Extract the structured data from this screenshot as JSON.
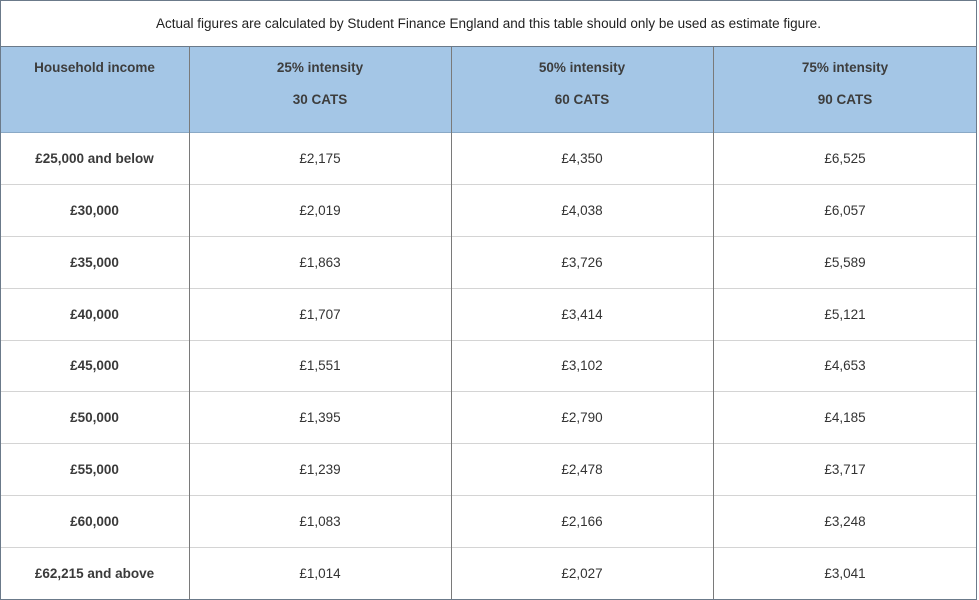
{
  "header": {
    "note": "Actual figures are calculated by Student Finance England and this table should only be used as estimate figure."
  },
  "table": {
    "columns": [
      {
        "title": "Household income"
      },
      {
        "title": "25% intensity",
        "subtitle": "30 CATS"
      },
      {
        "title": "50% intensity",
        "subtitle": "60 CATS"
      },
      {
        "title": "75% intensity",
        "subtitle": "90 CATS"
      }
    ],
    "rows": [
      [
        "£25,000 and below",
        "£2,175",
        "£4,350",
        "£6,525"
      ],
      [
        "£30,000",
        "£2,019",
        "£4,038",
        "£6,057"
      ],
      [
        "£35,000",
        "£1,863",
        "£3,726",
        "£5,589"
      ],
      [
        "£40,000",
        "£1,707",
        "£3,414",
        "£5,121"
      ],
      [
        "£45,000",
        "£1,551",
        "£3,102",
        "£4,653"
      ],
      [
        "£50,000",
        "£1,395",
        "£2,790",
        "£4,185"
      ],
      [
        "£55,000",
        "£1,239",
        "£2,478",
        "£3,717"
      ],
      [
        "£60,000",
        "£1,083",
        "£2,166",
        "£3,248"
      ],
      [
        "£62,215 and above",
        "£1,014",
        "£2,027",
        "£3,041"
      ]
    ]
  }
}
